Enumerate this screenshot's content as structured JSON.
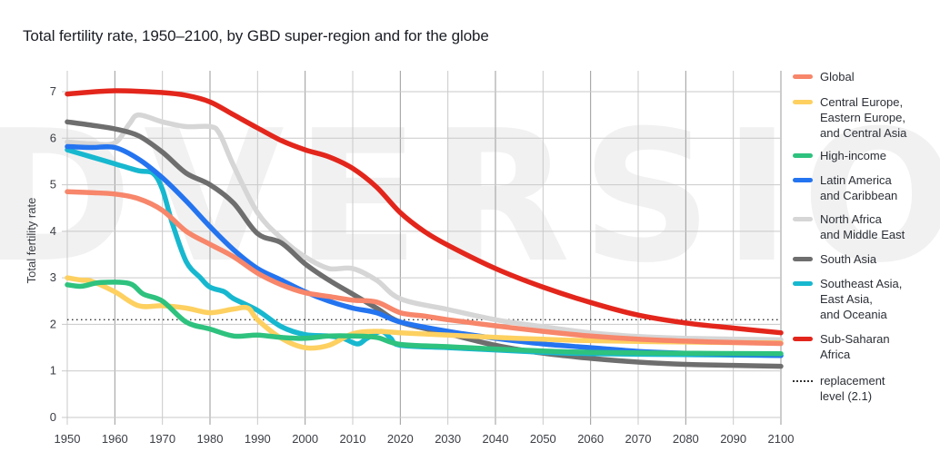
{
  "watermark": "DVERSIO",
  "chart_data": {
    "type": "line",
    "title": "Total fertility rate, 1950–2100, by GBD super-region and for the globe",
    "xlabel": "",
    "ylabel": "Total fertility rate",
    "xlim": [
      1950,
      2100
    ],
    "ylim": [
      0,
      7
    ],
    "x_ticks": [
      1950,
      1960,
      1970,
      1980,
      1990,
      2000,
      2010,
      2020,
      2030,
      2040,
      2050,
      2060,
      2070,
      2080,
      2090,
      2100
    ],
    "y_ticks": [
      0,
      1,
      2,
      3,
      4,
      5,
      6,
      7
    ],
    "grid": true,
    "legend_position": "right",
    "reference_line": {
      "label": "replacement level (2.1)",
      "value": 2.1,
      "color": "#333333"
    },
    "series": [
      {
        "name": "Global",
        "color": "#f7866a",
        "points": [
          [
            1950,
            4.85
          ],
          [
            1955,
            4.83
          ],
          [
            1960,
            4.8
          ],
          [
            1965,
            4.7
          ],
          [
            1970,
            4.45
          ],
          [
            1975,
            4.0
          ],
          [
            1980,
            3.72
          ],
          [
            1985,
            3.45
          ],
          [
            1990,
            3.1
          ],
          [
            1995,
            2.85
          ],
          [
            2000,
            2.68
          ],
          [
            2005,
            2.6
          ],
          [
            2010,
            2.52
          ],
          [
            2015,
            2.48
          ],
          [
            2020,
            2.25
          ],
          [
            2025,
            2.18
          ],
          [
            2030,
            2.1
          ],
          [
            2040,
            1.97
          ],
          [
            2050,
            1.85
          ],
          [
            2060,
            1.75
          ],
          [
            2070,
            1.68
          ],
          [
            2080,
            1.64
          ],
          [
            2090,
            1.61
          ],
          [
            2100,
            1.59
          ]
        ]
      },
      {
        "name": "Central Europe,\nEastern Europe,\nand Central Asia",
        "color": "#fdd060",
        "points": [
          [
            1950,
            3.0
          ],
          [
            1953,
            2.95
          ],
          [
            1955,
            2.93
          ],
          [
            1960,
            2.7
          ],
          [
            1965,
            2.4
          ],
          [
            1970,
            2.4
          ],
          [
            1975,
            2.35
          ],
          [
            1980,
            2.25
          ],
          [
            1985,
            2.33
          ],
          [
            1988,
            2.35
          ],
          [
            1990,
            2.1
          ],
          [
            1995,
            1.7
          ],
          [
            2000,
            1.5
          ],
          [
            2005,
            1.55
          ],
          [
            2010,
            1.8
          ],
          [
            2015,
            1.85
          ],
          [
            2020,
            1.82
          ],
          [
            2030,
            1.77
          ],
          [
            2040,
            1.72
          ],
          [
            2050,
            1.68
          ],
          [
            2060,
            1.65
          ],
          [
            2080,
            1.62
          ],
          [
            2100,
            1.6
          ]
        ]
      },
      {
        "name": "High-income",
        "color": "#2ec27e",
        "points": [
          [
            1950,
            2.85
          ],
          [
            1953,
            2.82
          ],
          [
            1957,
            2.9
          ],
          [
            1963,
            2.88
          ],
          [
            1966,
            2.65
          ],
          [
            1970,
            2.5
          ],
          [
            1975,
            2.05
          ],
          [
            1980,
            1.9
          ],
          [
            1985,
            1.75
          ],
          [
            1990,
            1.77
          ],
          [
            1995,
            1.72
          ],
          [
            2000,
            1.7
          ],
          [
            2005,
            1.75
          ],
          [
            2010,
            1.75
          ],
          [
            2015,
            1.72
          ],
          [
            2020,
            1.57
          ],
          [
            2030,
            1.52
          ],
          [
            2040,
            1.47
          ],
          [
            2050,
            1.43
          ],
          [
            2060,
            1.4
          ],
          [
            2080,
            1.38
          ],
          [
            2100,
            1.37
          ]
        ]
      },
      {
        "name": "Latin America\nand Caribbean",
        "color": "#2474f0",
        "points": [
          [
            1950,
            5.82
          ],
          [
            1955,
            5.8
          ],
          [
            1960,
            5.8
          ],
          [
            1965,
            5.55
          ],
          [
            1970,
            5.15
          ],
          [
            1975,
            4.65
          ],
          [
            1980,
            4.1
          ],
          [
            1985,
            3.6
          ],
          [
            1990,
            3.2
          ],
          [
            1995,
            2.95
          ],
          [
            2000,
            2.7
          ],
          [
            2005,
            2.5
          ],
          [
            2010,
            2.35
          ],
          [
            2015,
            2.25
          ],
          [
            2020,
            2.05
          ],
          [
            2030,
            1.85
          ],
          [
            2040,
            1.7
          ],
          [
            2050,
            1.58
          ],
          [
            2060,
            1.5
          ],
          [
            2070,
            1.42
          ],
          [
            2080,
            1.38
          ],
          [
            2100,
            1.33
          ]
        ]
      },
      {
        "name": "North Africa\nand Middle East",
        "color": "#d6d6d6",
        "points": [
          [
            1950,
            5.92
          ],
          [
            1955,
            5.88
          ],
          [
            1960,
            5.9
          ],
          [
            1963,
            6.3
          ],
          [
            1965,
            6.5
          ],
          [
            1970,
            6.35
          ],
          [
            1975,
            6.25
          ],
          [
            1980,
            6.25
          ],
          [
            1982,
            6.1
          ],
          [
            1985,
            5.4
          ],
          [
            1990,
            4.4
          ],
          [
            1995,
            3.85
          ],
          [
            2000,
            3.45
          ],
          [
            2005,
            3.2
          ],
          [
            2010,
            3.2
          ],
          [
            2015,
            2.95
          ],
          [
            2020,
            2.55
          ],
          [
            2030,
            2.32
          ],
          [
            2040,
            2.1
          ],
          [
            2050,
            1.95
          ],
          [
            2060,
            1.82
          ],
          [
            2070,
            1.74
          ],
          [
            2080,
            1.7
          ],
          [
            2100,
            1.67
          ]
        ]
      },
      {
        "name": "South Asia",
        "color": "#6e6e6e",
        "points": [
          [
            1950,
            6.35
          ],
          [
            1955,
            6.28
          ],
          [
            1960,
            6.2
          ],
          [
            1965,
            6.05
          ],
          [
            1970,
            5.7
          ],
          [
            1975,
            5.25
          ],
          [
            1980,
            5.0
          ],
          [
            1985,
            4.6
          ],
          [
            1990,
            3.95
          ],
          [
            1995,
            3.75
          ],
          [
            2000,
            3.3
          ],
          [
            2005,
            2.95
          ],
          [
            2010,
            2.65
          ],
          [
            2015,
            2.35
          ],
          [
            2020,
            2.05
          ],
          [
            2030,
            1.8
          ],
          [
            2040,
            1.55
          ],
          [
            2050,
            1.38
          ],
          [
            2060,
            1.27
          ],
          [
            2070,
            1.19
          ],
          [
            2080,
            1.14
          ],
          [
            2090,
            1.12
          ],
          [
            2100,
            1.1
          ]
        ]
      },
      {
        "name": "Southeast Asia,\nEast Asia,\nand Oceania",
        "color": "#17b8cf",
        "points": [
          [
            1950,
            5.75
          ],
          [
            1955,
            5.6
          ],
          [
            1960,
            5.45
          ],
          [
            1965,
            5.3
          ],
          [
            1968,
            5.25
          ],
          [
            1970,
            4.9
          ],
          [
            1972,
            4.2
          ],
          [
            1975,
            3.35
          ],
          [
            1978,
            3.0
          ],
          [
            1980,
            2.8
          ],
          [
            1983,
            2.7
          ],
          [
            1985,
            2.55
          ],
          [
            1990,
            2.3
          ],
          [
            1995,
            1.95
          ],
          [
            2000,
            1.78
          ],
          [
            2005,
            1.75
          ],
          [
            2008,
            1.7
          ],
          [
            2011,
            1.58
          ],
          [
            2013,
            1.7
          ],
          [
            2016,
            1.85
          ],
          [
            2018,
            1.7
          ],
          [
            2020,
            1.55
          ],
          [
            2030,
            1.5
          ],
          [
            2040,
            1.45
          ],
          [
            2050,
            1.4
          ],
          [
            2060,
            1.37
          ],
          [
            2080,
            1.35
          ],
          [
            2100,
            1.33
          ]
        ]
      },
      {
        "name": "Sub-Saharan\nAfrica",
        "color": "#e3261c",
        "points": [
          [
            1950,
            6.95
          ],
          [
            1960,
            7.02
          ],
          [
            1970,
            6.98
          ],
          [
            1975,
            6.92
          ],
          [
            1980,
            6.78
          ],
          [
            1985,
            6.5
          ],
          [
            1990,
            6.22
          ],
          [
            1995,
            5.95
          ],
          [
            2000,
            5.75
          ],
          [
            2005,
            5.6
          ],
          [
            2010,
            5.35
          ],
          [
            2015,
            4.95
          ],
          [
            2020,
            4.4
          ],
          [
            2025,
            4.0
          ],
          [
            2030,
            3.7
          ],
          [
            2040,
            3.2
          ],
          [
            2050,
            2.8
          ],
          [
            2060,
            2.47
          ],
          [
            2070,
            2.2
          ],
          [
            2080,
            2.03
          ],
          [
            2090,
            1.92
          ],
          [
            2100,
            1.82
          ]
        ]
      }
    ]
  }
}
